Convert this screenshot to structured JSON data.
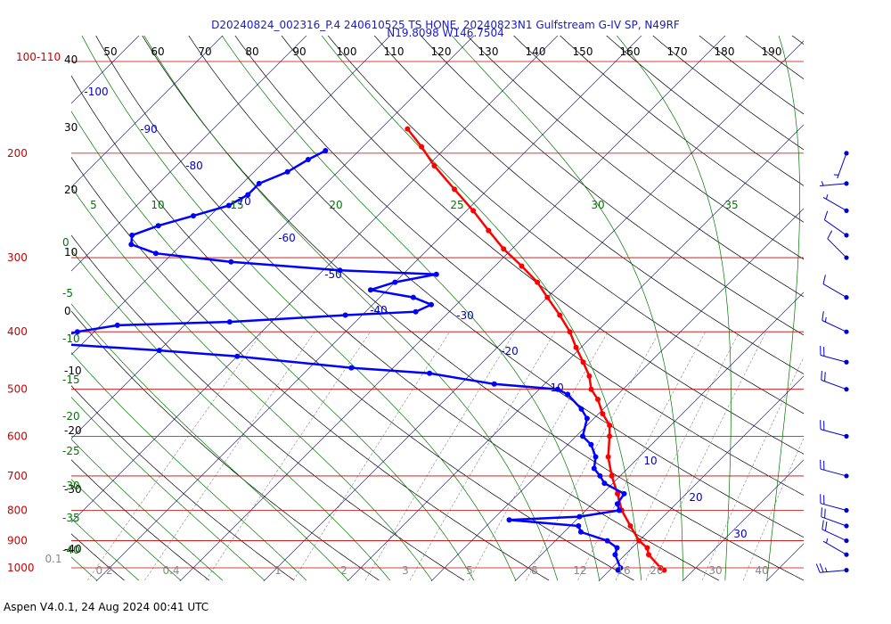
{
  "header": {
    "title_line1": "D20240824_002316_P.4 240610525 TS HONE, 20240823N1 Gulfstream G-IV SP, N49RF",
    "title_line2": "N19.8098 W146.7504"
  },
  "footer": "Aspen V4.0.1, 24 Aug 2024  00:41 UTC",
  "colors": {
    "isobar": "#cc0000",
    "isotherm": "#0000cc",
    "dry_adiabat": "#000000",
    "moist_adiabat": "#007700",
    "mixing_ratio": "#888888",
    "temperature_trace": "#ff0000",
    "dewpoint_trace": "#0000ff",
    "wind_barb": "#0000cc"
  },
  "chart_data": {
    "type": "skew-t log-p",
    "title": "D20240824_002316_P.4 240610525 TS HONE, 20240823N1 Gulfstream G-IV SP, N49RF",
    "pressure_range_hPa": [
      1000,
      100
    ],
    "pressure_scale": "log",
    "grid": true,
    "isobars_hPa": [
      1000,
      900,
      800,
      700,
      600,
      500,
      400,
      300,
      200
    ],
    "pressure_labels": [
      "1000",
      "900",
      "800",
      "700",
      "600",
      "500",
      "400",
      "300",
      "200",
      "100-110"
    ],
    "top_axis_labels": [
      "50",
      "60",
      "70",
      "80",
      "90",
      "100",
      "110",
      "120",
      "130",
      "140",
      "150",
      "160",
      "170",
      "180",
      "190"
    ],
    "dry_adiabat_labels": [
      "40",
      "30",
      "20",
      "10",
      "0",
      "-10",
      "-20",
      "-30",
      "-40"
    ],
    "moist_adiabat_labels_top": [
      "5",
      "10",
      "15",
      "20",
      "25",
      "30",
      "35"
    ],
    "moist_adiabat_labels_left": [
      "0",
      "-5",
      "-10",
      "-15",
      "-20",
      "-25",
      "-30",
      "-35",
      "-40"
    ],
    "isotherm_labels": [
      {
        "text": "-100",
        "t": -100
      },
      {
        "text": "-90",
        "t": -90
      },
      {
        "text": "-80",
        "t": -80
      },
      {
        "text": "-70",
        "t": -70
      },
      {
        "text": "-60",
        "t": -60
      },
      {
        "text": "-50",
        "t": -50
      },
      {
        "text": "-40",
        "t": -40
      },
      {
        "text": "-30",
        "t": -30
      },
      {
        "text": "-20",
        "t": -20
      },
      {
        "text": "-10",
        "t": -10
      },
      {
        "text": "10",
        "t": 10
      },
      {
        "text": "20",
        "t": 20
      },
      {
        "text": "30",
        "t": 30
      }
    ],
    "mixing_ratio_labels": [
      "0.1",
      "0.2",
      "0.4",
      "1",
      "2",
      "3",
      "5",
      "8",
      "12",
      "16",
      "20",
      "30",
      "40"
    ],
    "series": [
      {
        "name": "Temperature",
        "points": [
          [
            1009,
            26.5
          ],
          [
            1000,
            25.8
          ],
          [
            950,
            22.8
          ],
          [
            925,
            21.8
          ],
          [
            900,
            20.0
          ],
          [
            850,
            17.2
          ],
          [
            800,
            14.3
          ],
          [
            750,
            11.8
          ],
          [
            700,
            9.0
          ],
          [
            650,
            6.3
          ],
          [
            600,
            4.0
          ],
          [
            575,
            2.7
          ],
          [
            550,
            0.5
          ],
          [
            520,
            -1.8
          ],
          [
            500,
            -3.8
          ],
          [
            475,
            -5.6
          ],
          [
            450,
            -8.0
          ],
          [
            425,
            -10.6
          ],
          [
            400,
            -13.2
          ],
          [
            375,
            -16.4
          ],
          [
            350,
            -20.0
          ],
          [
            330,
            -23.0
          ],
          [
            310,
            -26.8
          ],
          [
            290,
            -31.0
          ],
          [
            270,
            -35.0
          ],
          [
            250,
            -39.2
          ],
          [
            230,
            -44.0
          ],
          [
            210,
            -49.2
          ],
          [
            195,
            -53.0
          ],
          [
            182,
            -56.8
          ]
        ]
      },
      {
        "name": "Dewpoint",
        "points": [
          [
            1009,
            21.0
          ],
          [
            1000,
            21.0
          ],
          [
            950,
            18.8
          ],
          [
            925,
            18.2
          ],
          [
            900,
            16.2
          ],
          [
            870,
            12.0
          ],
          [
            850,
            11.0
          ],
          [
            830,
            2.0
          ],
          [
            820,
            10.0
          ],
          [
            800,
            14.0
          ],
          [
            780,
            13.0
          ],
          [
            750,
            12.6
          ],
          [
            720,
            9.0
          ],
          [
            700,
            7.6
          ],
          [
            680,
            6.0
          ],
          [
            650,
            4.8
          ],
          [
            620,
            2.8
          ],
          [
            600,
            0.8
          ],
          [
            560,
            -0.8
          ],
          [
            540,
            -2.6
          ],
          [
            510,
            -6.0
          ],
          [
            500,
            -7.8
          ],
          [
            490,
            -16.0
          ],
          [
            470,
            -25.0
          ],
          [
            460,
            -35.0
          ],
          [
            440,
            -50.0
          ],
          [
            430,
            -60.0
          ],
          [
            420,
            -72.0
          ],
          [
            415,
            -75.0
          ],
          [
            400,
            -72.0
          ],
          [
            390,
            -68.0
          ],
          [
            385,
            -55.0
          ],
          [
            375,
            -42.0
          ],
          [
            370,
            -34.0
          ],
          [
            360,
            -33.0
          ],
          [
            350,
            -36.0
          ],
          [
            340,
            -42.0
          ],
          [
            330,
            -40.0
          ],
          [
            320,
            -36.0
          ],
          [
            315,
            -48.0
          ],
          [
            305,
            -62.0
          ],
          [
            295,
            -72.0
          ],
          [
            285,
            -76.0
          ],
          [
            275,
            -77.0
          ],
          [
            265,
            -75.0
          ],
          [
            255,
            -72.0
          ],
          [
            245,
            -69.0
          ],
          [
            235,
            -68.0
          ],
          [
            225,
            -68.0
          ],
          [
            215,
            -66.0
          ],
          [
            205,
            -65.0
          ],
          [
            198,
            -64.0
          ]
        ]
      }
    ],
    "wind_barbs": [
      {
        "pressure_hPa": 1009,
        "speed_kt": 25,
        "direction_deg": 265
      },
      {
        "pressure_hPa": 950,
        "speed_kt": 5,
        "direction_deg": 300
      },
      {
        "pressure_hPa": 900,
        "speed_kt": 20,
        "direction_deg": 295
      },
      {
        "pressure_hPa": 850,
        "speed_kt": 20,
        "direction_deg": 290
      },
      {
        "pressure_hPa": 800,
        "speed_kt": 20,
        "direction_deg": 285
      },
      {
        "pressure_hPa": 700,
        "speed_kt": 20,
        "direction_deg": 285
      },
      {
        "pressure_hPa": 600,
        "speed_kt": 20,
        "direction_deg": 285
      },
      {
        "pressure_hPa": 500,
        "speed_kt": 20,
        "direction_deg": 290
      },
      {
        "pressure_hPa": 450,
        "speed_kt": 20,
        "direction_deg": 285
      },
      {
        "pressure_hPa": 400,
        "speed_kt": 15,
        "direction_deg": 295
      },
      {
        "pressure_hPa": 350,
        "speed_kt": 10,
        "direction_deg": 300
      },
      {
        "pressure_hPa": 300,
        "speed_kt": 10,
        "direction_deg": 315
      },
      {
        "pressure_hPa": 275,
        "speed_kt": 10,
        "direction_deg": 305
      },
      {
        "pressure_hPa": 250,
        "speed_kt": 5,
        "direction_deg": 300
      },
      {
        "pressure_hPa": 225,
        "speed_kt": 5,
        "direction_deg": 265
      },
      {
        "pressure_hPa": 200,
        "speed_kt": 5,
        "direction_deg": 200
      }
    ]
  }
}
